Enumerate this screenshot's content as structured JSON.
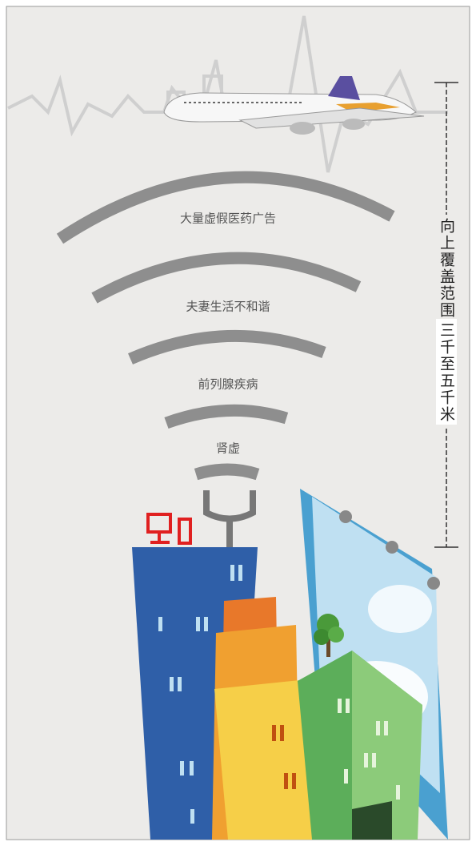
{
  "arcs": [
    {
      "label": "大量虚假医药广告"
    },
    {
      "label": "夫妻生活不和谐"
    },
    {
      "label": "前列腺疾病"
    },
    {
      "label": "肾虚"
    }
  ],
  "coverage": {
    "label": "向上覆盖范围",
    "range": "三千至五千米"
  }
}
